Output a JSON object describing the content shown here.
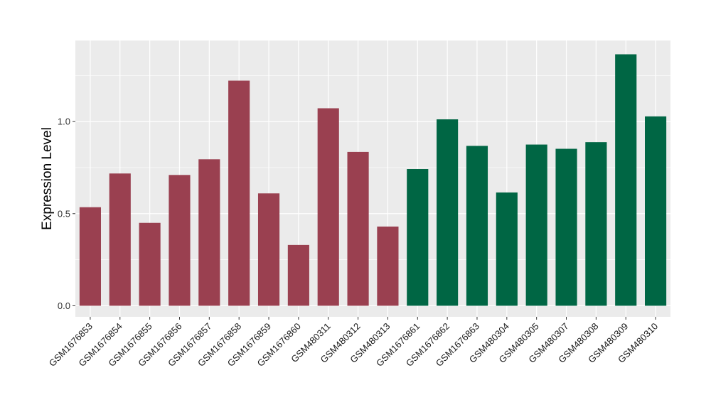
{
  "chart_data": {
    "type": "bar",
    "title": "",
    "xlabel": "",
    "ylabel": "Expression Level",
    "ylim": [
      -0.06,
      1.44
    ],
    "yticks": [
      0.0,
      0.5,
      1.0
    ],
    "ytick_labels": [
      "0.0",
      "0.5",
      "1.0"
    ],
    "grid": true,
    "legend": "none",
    "categories": [
      "GSM1676853",
      "GSM1676854",
      "GSM1676855",
      "GSM1676856",
      "GSM1676857",
      "GSM1676858",
      "GSM1676859",
      "GSM1676860",
      "GSM480311",
      "GSM480312",
      "GSM480313",
      "GSM1676861",
      "GSM1676862",
      "GSM1676863",
      "GSM480304",
      "GSM480305",
      "GSM480307",
      "GSM480308",
      "GSM480309",
      "GSM480310"
    ],
    "values": [
      0.535,
      0.718,
      0.45,
      0.71,
      0.795,
      1.222,
      0.61,
      0.33,
      1.072,
      0.835,
      0.43,
      0.742,
      1.012,
      0.868,
      0.615,
      0.875,
      0.852,
      0.888,
      1.365,
      1.028
    ],
    "bar_colors": [
      "#9a4050",
      "#9a4050",
      "#9a4050",
      "#9a4050",
      "#9a4050",
      "#9a4050",
      "#9a4050",
      "#9a4050",
      "#9a4050",
      "#9a4050",
      "#9a4050",
      "#006644",
      "#006644",
      "#006644",
      "#006644",
      "#006644",
      "#006644",
      "#006644",
      "#006644",
      "#006644"
    ],
    "panel_background": "#ebebeb",
    "grid_color": "#ffffff"
  }
}
